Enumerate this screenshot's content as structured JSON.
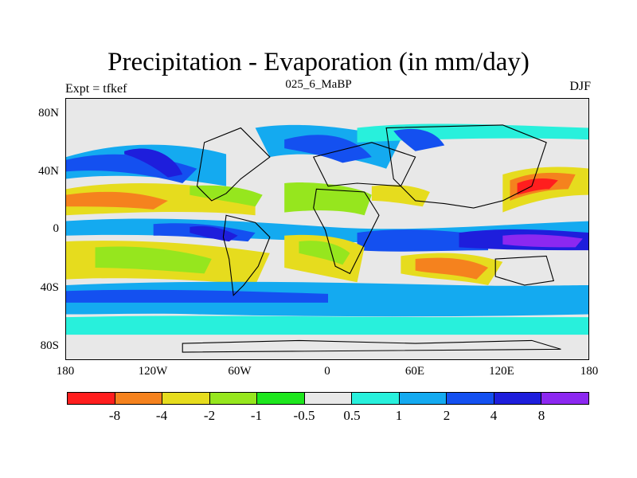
{
  "title": "Precipitation - Evaporation (in mm/day)",
  "header": {
    "left": "Expt = tfkef",
    "center": "025_6_MaBP",
    "right": "DJF"
  },
  "map": {
    "lon_range": [
      -180,
      180
    ],
    "lat_range": [
      -90,
      90
    ],
    "lat_ticks": [
      {
        "value": 80,
        "label": "80N"
      },
      {
        "value": 40,
        "label": "40N"
      },
      {
        "value": 0,
        "label": "0"
      },
      {
        "value": -40,
        "label": "40S"
      },
      {
        "value": -80,
        "label": "80S"
      }
    ],
    "lon_ticks": [
      {
        "value": -180,
        "label": "180"
      },
      {
        "value": -120,
        "label": "120W"
      },
      {
        "value": -60,
        "label": "60W"
      },
      {
        "value": 0,
        "label": "0"
      },
      {
        "value": 60,
        "label": "60E"
      },
      {
        "value": 120,
        "label": "120E"
      },
      {
        "value": 180,
        "label": "180"
      }
    ],
    "background_color": "#e8e8e8"
  },
  "colorbar": {
    "colors": [
      "#ff1e1e",
      "#f5821e",
      "#e6dc1e",
      "#96e61e",
      "#1ee61e",
      "#e8e8e8",
      "#28f0dc",
      "#14aaf0",
      "#1450f0",
      "#1e1edc",
      "#8c28f0"
    ],
    "labels": [
      "-8",
      "-4",
      "-2",
      "-1",
      "-0.5",
      "0.5",
      "1",
      "2",
      "4",
      "8"
    ]
  }
}
